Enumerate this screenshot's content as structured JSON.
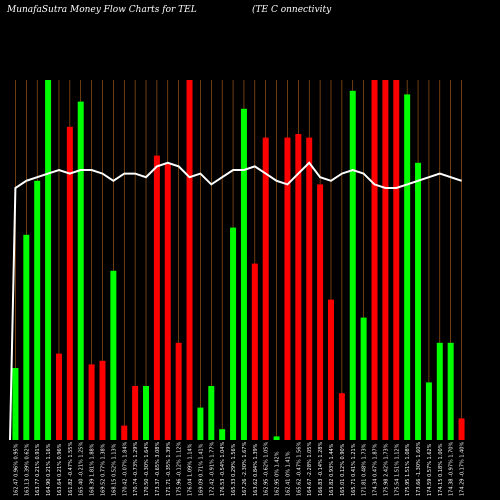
{
  "header": {
    "title_left": "MunafaSutra  Money Flow  Charts for TEL",
    "title_right": "(TE C                              onnectivity"
  },
  "colors": {
    "background": "#000000",
    "up": "#00ff00",
    "down": "#ff0000",
    "line": "#ffffff",
    "grid": "#b5651d"
  },
  "chart_data": {
    "type": "bar",
    "title": "MunafaSutra  Money Flow  Charts for TEL",
    "ylim": [
      0,
      100
    ],
    "grid": true,
    "categories": [
      "162.47 0.96% 0.95%",
      "163.13 0.39% 0.62%",
      "163.77 0.21% 0.91%",
      "164.90 0.21% 1.16%",
      "163.64 0.21% 0.96%",
      "161.82 -0.47% 1.55%",
      "165.40 -0.21% 1.25%",
      "168.39 1.81% 1.88%",
      "169.52 0.77% 1.38%",
      "168.15 0.52% 1.13%",
      "170.42 -0.07% 1.84%",
      "170.74 -0.73% 1.29%",
      "170.50 -0.30% 1.64%",
      "173.37 -0.65% 3.08%",
      "171.71 -0.35% 1.39%",
      "175.96 -0.12% 1.12%",
      "176.04 1.09% 1.14%",
      "169.09 0.71% 1.41%",
      "172.42 -0.91% 1.77%",
      "176.53 -0.54% 1.04%",
      "165.33 0.29% 1.56%",
      "167.26 -2.30% 1.67%",
      "163.62 0.84% 1.39%",
      "162.95 -0.62% 1.05%",
      "162.95 0% 1.42%",
      "162.41 0% 1.41%",
      "165.62 -0.47% 1.56%",
      "164.67 -2.28% 1.05%",
      "166.83 -0.14% 1.28%",
      "163.82 0.93% 1.44%",
      "165.01 0.12% 0.90%",
      "165.71 0.41% 1.21%",
      "171.81 0.48% 1.73%",
      "174.34 0.47% 1.87%",
      "175.98 2.42% 1.73%",
      "175.54 1.51% 1.12%",
      "175.95 1.51% 1.08%",
      "173.66 -1.30% 1.60%",
      "174.59 0.57% 1.62%",
      "174.15 0.18% 1.00%",
      "174.38 -0.97% 1.70%",
      "174.29 -0.17% 1.40%"
    ],
    "series": [
      {
        "values": [
          20,
          57,
          72,
          100,
          24,
          87,
          94,
          21,
          22,
          47,
          4,
          15,
          15,
          79,
          77,
          27,
          100,
          9,
          15,
          3,
          59,
          92,
          49,
          84,
          1,
          84,
          85,
          84,
          71,
          39,
          13,
          97,
          34,
          100,
          100,
          100,
          96,
          77,
          16,
          27,
          27,
          6
        ],
        "direction": [
          "up",
          "up",
          "up",
          "up",
          "down",
          "down",
          "up",
          "down",
          "down",
          "up",
          "down",
          "down",
          "up",
          "down",
          "down",
          "down",
          "down",
          "up",
          "up",
          "up",
          "up",
          "up",
          "down",
          "down",
          "up",
          "down",
          "down",
          "down",
          "down",
          "down",
          "down",
          "up",
          "up",
          "down",
          "down",
          "down",
          "up",
          "up",
          "up",
          "up",
          "up",
          "down"
        ]
      },
      {
        "values": [
          70,
          72,
          73,
          74,
          75,
          74,
          75,
          75,
          74,
          72,
          74,
          74,
          73,
          76,
          77,
          76,
          73,
          74,
          71,
          73,
          75,
          75,
          76,
          74,
          72,
          71,
          74,
          77,
          73,
          72,
          74,
          75,
          74,
          71,
          70,
          70,
          71,
          72,
          73,
          74,
          73,
          72
        ]
      }
    ]
  }
}
